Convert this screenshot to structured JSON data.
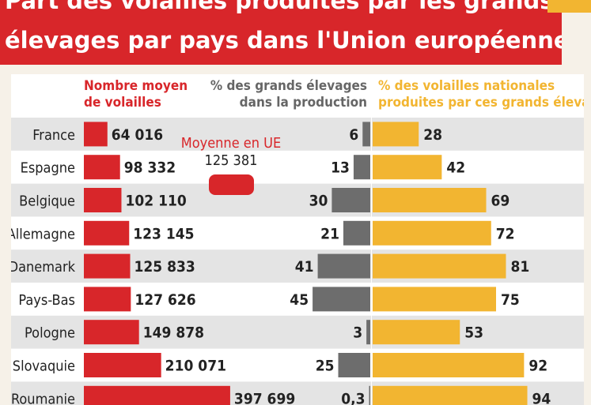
{
  "title_line1": "Part des volailles produites par les grands",
  "title_line2": "élevages par pays dans l'Union européenne",
  "colors": {
    "red": "#d8262a",
    "gray": "#6d6d6d",
    "orange": "#f2b531",
    "stripe": "#e4e4e4",
    "header_red": "#d8262a",
    "header_gray": "#666666",
    "header_orange": "#f2b531"
  },
  "chart_data": {
    "type": "bar",
    "categories": [
      "France",
      "Espagne",
      "Belgique",
      "Allemagne",
      "Danemark",
      "Pays-Bas",
      "Pologne",
      "Slovaquie",
      "Roumanie"
    ],
    "series": [
      {
        "name": "Nombre moyen de volailles",
        "header_lines": [
          "Nombre moyen",
          "de volailles"
        ],
        "values": [
          64016,
          98332,
          102110,
          123145,
          125833,
          127626,
          149878,
          210071,
          397699
        ],
        "labels": [
          "64 016",
          "98 332",
          "102 110",
          "123 145",
          "125 833",
          "127 626",
          "149 878",
          "210 071",
          "397 699"
        ]
      },
      {
        "name": "% des grands élevages dans la production",
        "header_lines": [
          "% des grands élevages",
          "dans la production"
        ],
        "values": [
          6,
          13,
          30,
          21,
          41,
          45,
          3,
          25,
          0.3
        ],
        "labels": [
          "6",
          "13",
          "30",
          "21",
          "41",
          "45",
          "3",
          "25",
          "0,3"
        ]
      },
      {
        "name": "% des volailles nationales produites par ces grands élevages",
        "header_lines": [
          "% des volailles nationales",
          "produites par ces grands élevages"
        ],
        "values": [
          28,
          42,
          69,
          72,
          81,
          75,
          53,
          92,
          94
        ],
        "labels": [
          "28",
          "42",
          "69",
          "72",
          "81",
          "75",
          "53",
          "92",
          "94"
        ]
      }
    ],
    "annotation": {
      "label": "Moyenne en UE",
      "value_label": "125 381",
      "value": 125381
    }
  }
}
